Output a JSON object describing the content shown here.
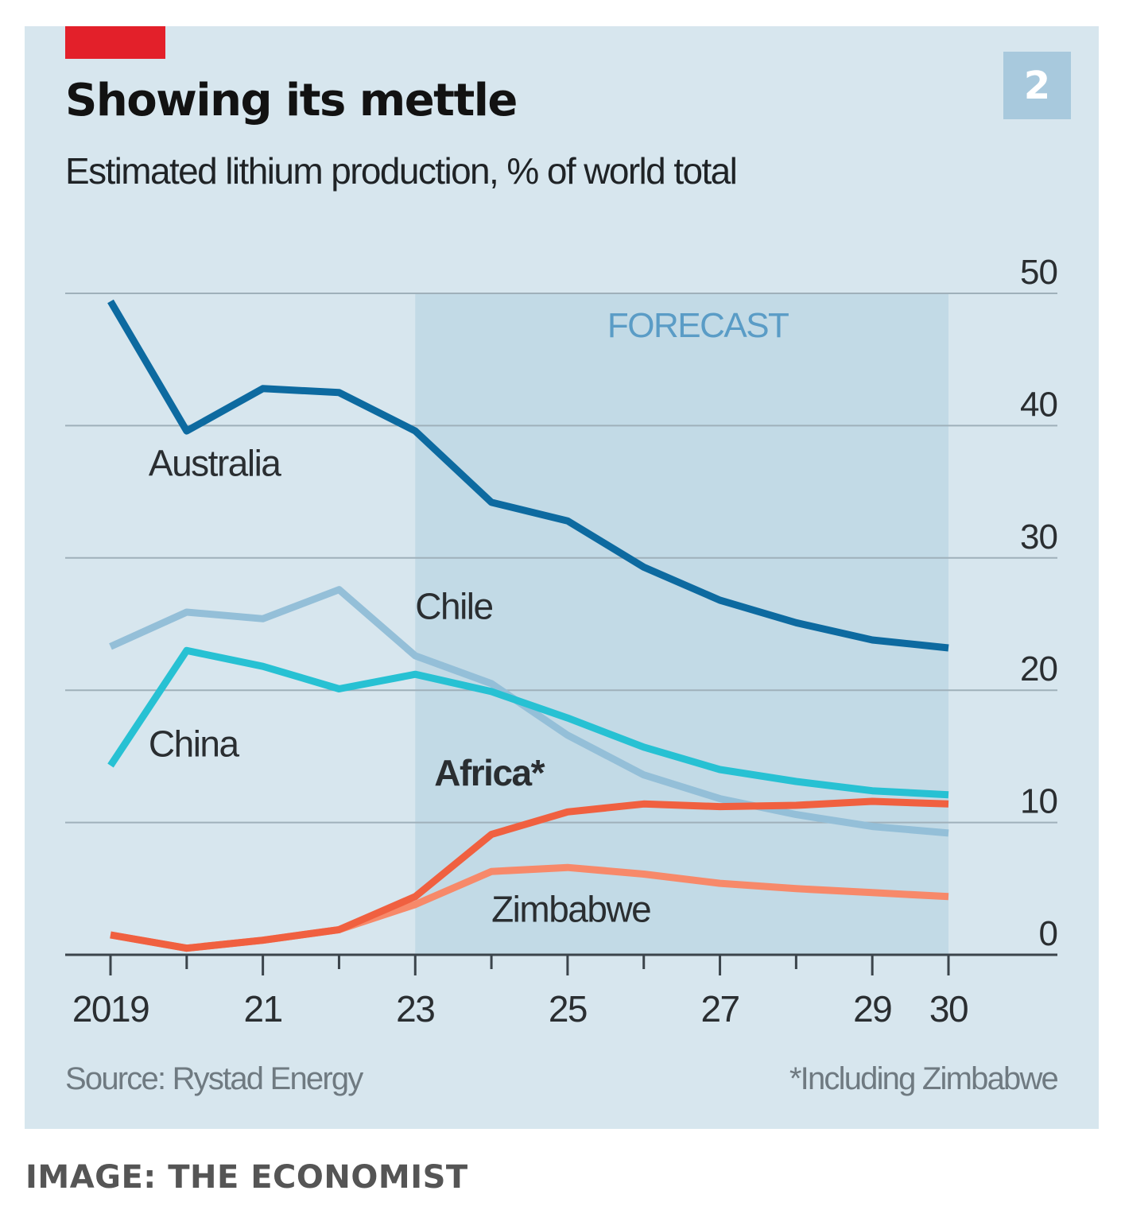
{
  "header": {
    "title": "Showing its mettle",
    "subtitle": "Estimated lithium production, % of world total",
    "chart_number": "2"
  },
  "footer": {
    "source": "Source: Rystad Energy",
    "footnote": "*Including Zimbabwe",
    "credit": "IMAGE: THE ECONOMIST"
  },
  "colors": {
    "panel": "#d7e6ee",
    "forecast_shade": "#c2dae6",
    "accent_red": "#e3202a"
  },
  "chart_data": {
    "type": "line",
    "title": "Showing its mettle",
    "subtitle": "Estimated lithium production, % of world total",
    "xlabel": "",
    "ylabel": "% of world total",
    "x": [
      2019,
      2020,
      2021,
      2022,
      2023,
      2024,
      2025,
      2026,
      2027,
      2028,
      2029,
      2030
    ],
    "x_tick_values": [
      2019,
      2021,
      2023,
      2025,
      2027,
      2029,
      2030
    ],
    "x_tick_labels": [
      "2019",
      "21",
      "23",
      "25",
      "27",
      "29",
      "30"
    ],
    "y_ticks": [
      0,
      10,
      20,
      30,
      40,
      50
    ],
    "ylim": [
      0,
      50
    ],
    "xlim": [
      2019,
      2030
    ],
    "y_axis_side": "right",
    "grid": true,
    "forecast_region": {
      "from": 2023,
      "to": 2030,
      "label": "FORECAST"
    },
    "series": [
      {
        "name": "Australia",
        "label": "Australia",
        "color": "#0d6aa0",
        "bold_label": false,
        "values": [
          49.4,
          39.6,
          42.8,
          42.5,
          39.6,
          34.2,
          32.8,
          29.3,
          26.8,
          25.1,
          23.8,
          23.2
        ],
        "label_at": [
          2019.5,
          36.2
        ]
      },
      {
        "name": "Chile",
        "label": "Chile",
        "color": "#94bfd8",
        "bold_label": false,
        "values": [
          23.3,
          25.9,
          25.4,
          27.6,
          22.6,
          20.5,
          16.6,
          13.6,
          11.8,
          10.6,
          9.7,
          9.2
        ],
        "label_at": [
          2023.0,
          25.4
        ]
      },
      {
        "name": "China",
        "label": "China",
        "color": "#27c1d3",
        "bold_label": false,
        "values": [
          14.3,
          23.0,
          21.8,
          20.1,
          21.2,
          19.9,
          17.9,
          15.7,
          14.0,
          13.1,
          12.4,
          12.1
        ],
        "label_at": [
          2019.5,
          15.0
        ]
      },
      {
        "name": "Africa*",
        "label": "Africa*",
        "color": "#f06040",
        "bold_label": true,
        "values": [
          1.5,
          0.5,
          1.1,
          1.9,
          4.4,
          9.1,
          10.8,
          11.4,
          11.2,
          11.3,
          11.6,
          11.4
        ],
        "label_at": [
          2023.25,
          12.8
        ]
      },
      {
        "name": "Zimbabwe",
        "label": "Zimbabwe",
        "color": "#f7896a",
        "bold_label": false,
        "values": [
          1.5,
          0.5,
          1.1,
          1.9,
          3.8,
          6.3,
          6.6,
          6.1,
          5.4,
          5.0,
          4.7,
          4.4
        ],
        "label_at": [
          2024.0,
          2.5
        ]
      }
    ],
    "legend": "inline-labels",
    "source": "Source: Rystad Energy",
    "footnote": "*Including Zimbabwe"
  }
}
